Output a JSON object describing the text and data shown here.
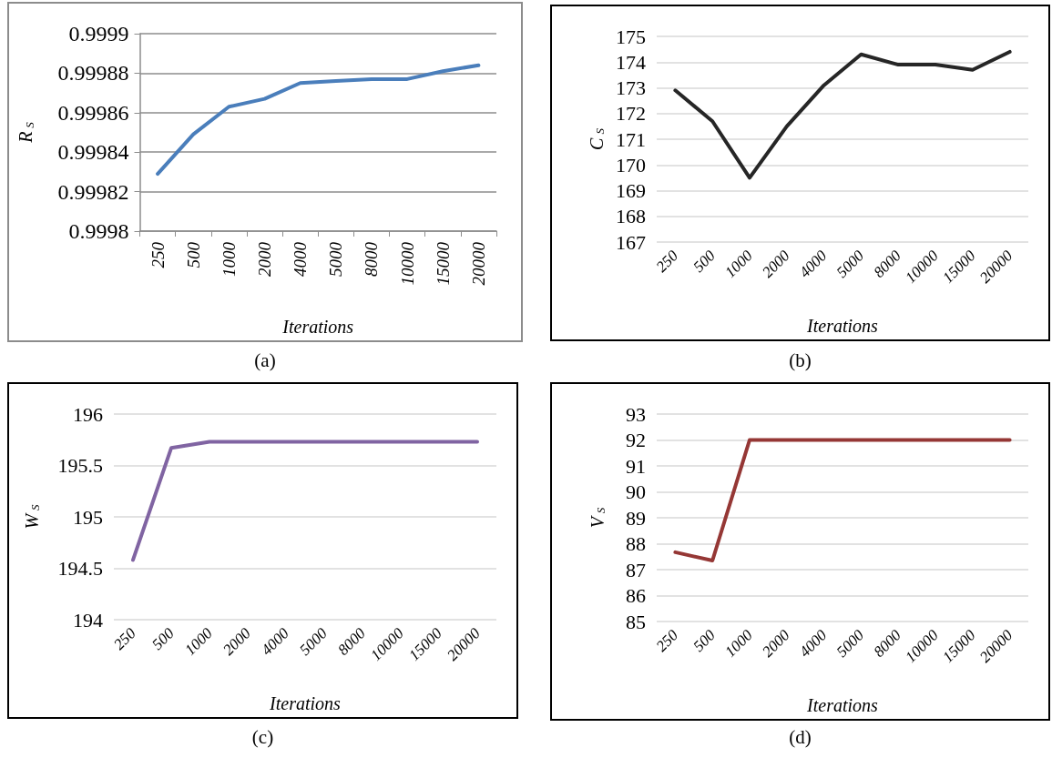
{
  "chart_data": [
    {
      "type": "line",
      "ylabel": "R$_{S}$",
      "xlabel": "Iterations",
      "annotations": [
        "(a)"
      ],
      "categories": [
        "250",
        "500",
        "1000",
        "2000",
        "4000",
        "5000",
        "8000",
        "10000",
        "15000",
        "20000"
      ],
      "series": [
        {
          "color": "#4a7ebb",
          "values": [
            0.999829,
            0.999849,
            0.999863,
            0.999867,
            0.999875,
            0.999876,
            0.999877,
            0.999877,
            0.999881,
            0.999884
          ]
        }
      ],
      "ylim": [
        0.9998,
        0.9999
      ],
      "yticks": [
        0.9998,
        0.99982,
        0.99984,
        0.99986,
        0.99988,
        0.9999
      ],
      "grid": "y",
      "marker": "none",
      "line_style": "solid"
    },
    {
      "type": "line",
      "ylabel": "C$_{S}$",
      "xlabel": "Iterations",
      "annotations": [
        "(b)"
      ],
      "categories": [
        "250",
        "500",
        "1000",
        "2000",
        "4000",
        "5000",
        "8000",
        "10000",
        "15000",
        "20000"
      ],
      "series": [
        {
          "color": "#262626",
          "values": [
            172.9,
            171.7,
            169.5,
            171.5,
            173.1,
            174.3,
            173.9,
            173.9,
            173.7,
            174.4
          ]
        }
      ],
      "ylim": [
        167,
        175
      ],
      "yticks": [
        167,
        168,
        169,
        170,
        171,
        172,
        173,
        174,
        175
      ],
      "grid": "y",
      "marker": "none",
      "line_style": "solid"
    },
    {
      "type": "line",
      "ylabel": "W$_{S}$",
      "xlabel": "Iterations",
      "annotations": [
        "(c)"
      ],
      "categories": [
        "250",
        "500",
        "1000",
        "2000",
        "4000",
        "5000",
        "8000",
        "10000",
        "15000",
        "20000"
      ],
      "series": [
        {
          "color": "#8064a2",
          "values": [
            194.58,
            195.67,
            195.73,
            195.73,
            195.73,
            195.73,
            195.73,
            195.73,
            195.73,
            195.73
          ]
        }
      ],
      "ylim": [
        194,
        196
      ],
      "yticks": [
        194,
        194.5,
        195,
        195.5,
        196
      ],
      "grid": "y",
      "marker": "none",
      "line_style": "solid"
    },
    {
      "type": "line",
      "ylabel": "V$_{S}$",
      "xlabel": "Iterations",
      "annotations": [
        "(d)"
      ],
      "categories": [
        "250",
        "500",
        "1000",
        "2000",
        "4000",
        "5000",
        "8000",
        "10000",
        "15000",
        "20000"
      ],
      "series": [
        {
          "color": "#953735",
          "values": [
            87.67,
            87.35,
            92,
            92,
            92,
            92,
            92,
            92,
            92,
            92
          ]
        }
      ],
      "ylim": [
        85,
        93
      ],
      "yticks": [
        85,
        86,
        87,
        88,
        89,
        90,
        91,
        92,
        93
      ],
      "grid": "y",
      "marker": "none",
      "line_style": "solid"
    }
  ]
}
